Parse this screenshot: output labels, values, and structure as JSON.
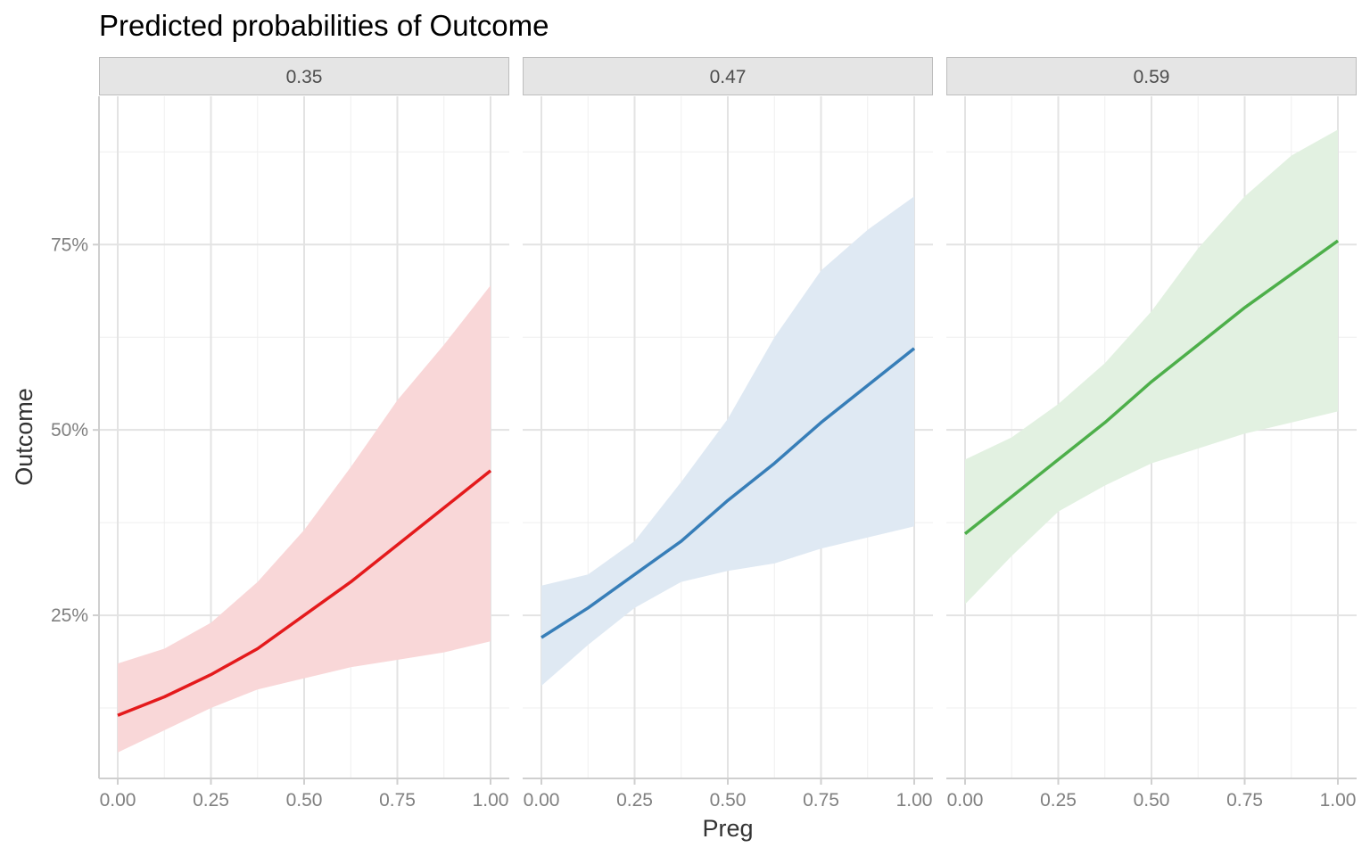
{
  "chart_data": {
    "type": "line",
    "title": "Predicted probabilities of Outcome",
    "xlabel": "Preg",
    "ylabel": "Outcome",
    "xlim": [
      0,
      1
    ],
    "ylim": [
      0.03,
      0.95
    ],
    "x_ticks": [
      {
        "value": 0,
        "label": "0.00"
      },
      {
        "value": 0.25,
        "label": "0.25"
      },
      {
        "value": 0.5,
        "label": "0.50"
      },
      {
        "value": 0.75,
        "label": "0.75"
      },
      {
        "value": 1,
        "label": "1.00"
      }
    ],
    "y_ticks": [
      {
        "value": 0.25,
        "label": "25%"
      },
      {
        "value": 0.5,
        "label": "50%"
      },
      {
        "value": 0.75,
        "label": "75%"
      }
    ],
    "x": [
      0,
      0.125,
      0.25,
      0.375,
      0.5,
      0.625,
      0.75,
      0.875,
      1
    ],
    "grid": true,
    "facets": [
      {
        "label": "0.35",
        "color": "#E41A1C",
        "fill": "#F9D7D8",
        "y": [
          0.115,
          0.14,
          0.17,
          0.205,
          0.25,
          0.295,
          0.345,
          0.395,
          0.445
        ],
        "lower": [
          0.065,
          0.095,
          0.125,
          0.15,
          0.165,
          0.18,
          0.19,
          0.2,
          0.215
        ],
        "upper": [
          0.185,
          0.205,
          0.24,
          0.295,
          0.365,
          0.45,
          0.54,
          0.615,
          0.695
        ]
      },
      {
        "label": "0.47",
        "color": "#377EB8",
        "fill": "#DFE9F3",
        "y": [
          0.22,
          0.26,
          0.305,
          0.35,
          0.405,
          0.455,
          0.51,
          0.56,
          0.61
        ],
        "lower": [
          0.155,
          0.21,
          0.26,
          0.295,
          0.31,
          0.32,
          0.34,
          0.355,
          0.37
        ],
        "upper": [
          0.29,
          0.305,
          0.35,
          0.43,
          0.515,
          0.625,
          0.715,
          0.77,
          0.815
        ]
      },
      {
        "label": "0.59",
        "color": "#4DAF4A",
        "fill": "#E2F1E1",
        "y": [
          0.36,
          0.41,
          0.46,
          0.51,
          0.565,
          0.615,
          0.665,
          0.71,
          0.755
        ],
        "lower": [
          0.265,
          0.33,
          0.39,
          0.425,
          0.455,
          0.475,
          0.495,
          0.51,
          0.525
        ],
        "upper": [
          0.46,
          0.49,
          0.535,
          0.59,
          0.66,
          0.745,
          0.815,
          0.87,
          0.905
        ]
      }
    ]
  }
}
